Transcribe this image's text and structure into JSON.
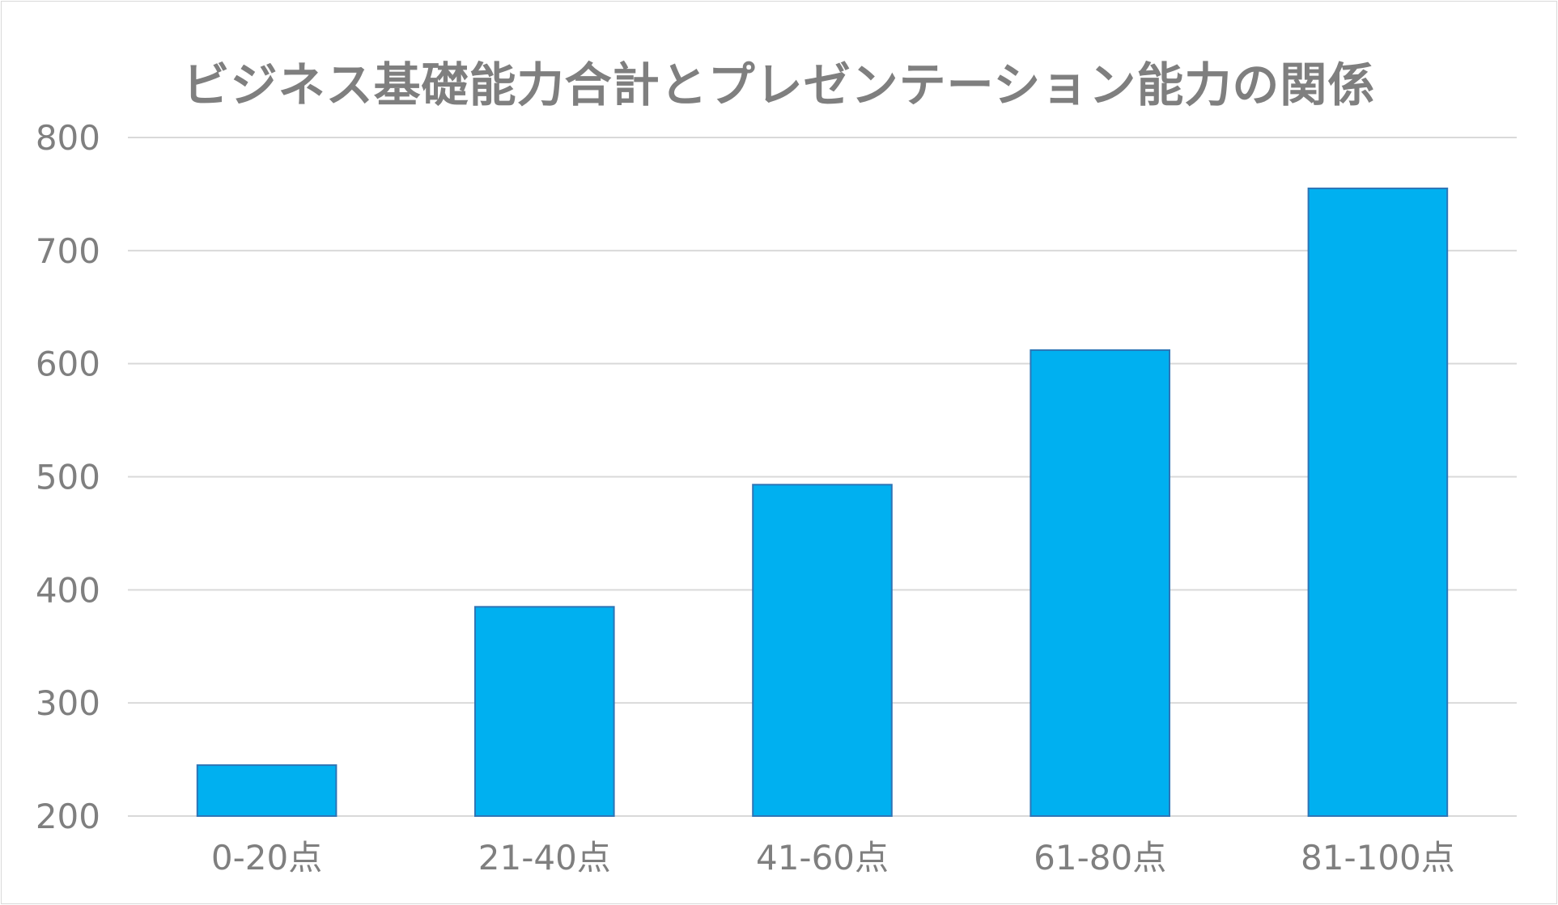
{
  "chart_data": {
    "type": "bar",
    "title": "ビジネス基礎能力合計とプレゼンテーション能力の関係",
    "xlabel": "",
    "ylabel": "",
    "categories": [
      "0-20点",
      "21-40点",
      "41-60点",
      "61-80点",
      "81-100点"
    ],
    "values": [
      245,
      385,
      493,
      612,
      755
    ],
    "ylim": [
      200,
      800
    ],
    "yticks": [
      200,
      300,
      400,
      500,
      600,
      700,
      800
    ],
    "ytick_labels": [
      "200",
      "300",
      "400",
      "500",
      "600",
      "700",
      "800"
    ],
    "grid": true,
    "legend": "none",
    "colors": {
      "bar_fill": "#00b0f0",
      "bar_stroke": "#2e75b6",
      "grid": "#d9d9d9",
      "text": "#7f7f7f"
    }
  }
}
